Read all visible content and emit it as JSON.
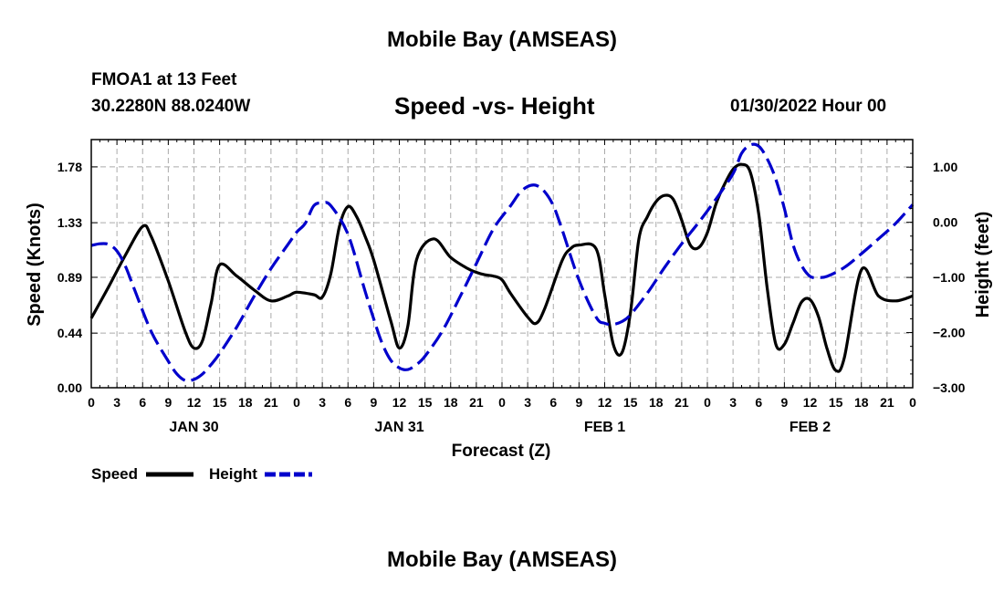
{
  "page": {
    "title": "Mobile Bay (AMSEAS)",
    "station": "FMOA1 at 13 Feet",
    "location": "30.2280N  88.0240W",
    "run_time": "01/30/2022 Hour 00",
    "footer_title": "Mobile Bay (AMSEAS)"
  },
  "colors": {
    "speed": "#000000",
    "height": "#0000cc",
    "grid": "#aaaaaa"
  },
  "chart_data": {
    "type": "line",
    "title": "Speed -vs- Height",
    "xlabel": "Forecast (Z)",
    "ylabel_left": "Speed (Knots)",
    "ylabel_right": "Height (feet)",
    "x_hour_range": [
      0,
      96
    ],
    "xtick_labels": [
      "0",
      "3",
      "6",
      "9",
      "12",
      "15",
      "18",
      "21",
      "0",
      "3",
      "6",
      "9",
      "12",
      "15",
      "18",
      "21",
      "0",
      "3",
      "6",
      "9",
      "12",
      "15",
      "18",
      "21",
      "0",
      "3",
      "6",
      "9",
      "12",
      "15",
      "18",
      "21",
      "0"
    ],
    "date_labels": [
      {
        "label": "JAN 30",
        "hour": 12
      },
      {
        "label": "JAN 31",
        "hour": 36
      },
      {
        "label": "FEB 1",
        "hour": 60
      },
      {
        "label": "FEB 2",
        "hour": 84
      }
    ],
    "ylim_left": [
      0,
      2.0
    ],
    "yticks_left": [
      "0.00",
      "0.44",
      "0.89",
      "1.33",
      "1.78"
    ],
    "ylim_right": [
      -3.0,
      1.5
    ],
    "yticks_right": [
      "−3.00",
      "−2.00",
      "−1.00",
      "0.00",
      "1.00"
    ],
    "grid": true,
    "legend": {
      "position": "bottom-left",
      "entries": [
        "Speed",
        "Height"
      ]
    },
    "series": [
      {
        "name": "Speed",
        "axis": "left",
        "dash": "solid",
        "hours": [
          0,
          2,
          4,
          6,
          7,
          9,
          11,
          12,
          13,
          14,
          15,
          17,
          19,
          21,
          23,
          24,
          26,
          27,
          28,
          29,
          30,
          31,
          32,
          33,
          35,
          36,
          37,
          38,
          40,
          42,
          44,
          45,
          46,
          47,
          48,
          49,
          51,
          52,
          53,
          55,
          56,
          57,
          59,
          60,
          61,
          62,
          63,
          64,
          65,
          66,
          67,
          68,
          69,
          70,
          71,
          72,
          73,
          74,
          75,
          76,
          77,
          78,
          79,
          80,
          81,
          82,
          83,
          84,
          85,
          86,
          87,
          88,
          90,
          92,
          94,
          96
        ],
        "values": [
          0.56,
          0.81,
          1.07,
          1.3,
          1.22,
          0.86,
          0.45,
          0.32,
          0.38,
          0.68,
          0.99,
          0.9,
          0.79,
          0.7,
          0.74,
          0.77,
          0.75,
          0.73,
          0.92,
          1.3,
          1.46,
          1.38,
          1.22,
          1.03,
          0.54,
          0.32,
          0.5,
          1.03,
          1.2,
          1.05,
          0.96,
          0.93,
          0.91,
          0.9,
          0.87,
          0.76,
          0.57,
          0.52,
          0.64,
          1.02,
          1.12,
          1.15,
          1.12,
          0.75,
          0.35,
          0.28,
          0.6,
          1.2,
          1.38,
          1.5,
          1.55,
          1.52,
          1.35,
          1.15,
          1.13,
          1.25,
          1.48,
          1.64,
          1.76,
          1.8,
          1.74,
          1.4,
          0.8,
          0.35,
          0.35,
          0.52,
          0.69,
          0.71,
          0.57,
          0.31,
          0.14,
          0.24,
          0.95,
          0.74,
          0.7,
          0.74
        ]
      },
      {
        "name": "Height",
        "axis": "right",
        "dash": "dashed",
        "hours": [
          0,
          1,
          2,
          3,
          4,
          5,
          7,
          9,
          10,
          11,
          12,
          13,
          14,
          15,
          17,
          19,
          21,
          23,
          24,
          25,
          26,
          27,
          28,
          30,
          32,
          33,
          34,
          35,
          36,
          37,
          38,
          39,
          41,
          43,
          45,
          47,
          49,
          50,
          51,
          52,
          53,
          54,
          55,
          57,
          59,
          60,
          61,
          62,
          63,
          65,
          67,
          69,
          71,
          73,
          75,
          76,
          77,
          78,
          79,
          80,
          81,
          82,
          83,
          84,
          85,
          86,
          88,
          90,
          92,
          94,
          96
        ],
        "values": [
          -0.42,
          -0.39,
          -0.4,
          -0.52,
          -0.8,
          -1.2,
          -1.98,
          -2.52,
          -2.75,
          -2.87,
          -2.85,
          -2.75,
          -2.58,
          -2.38,
          -1.9,
          -1.35,
          -0.84,
          -0.4,
          -0.18,
          -0.02,
          0.3,
          0.35,
          0.3,
          -0.22,
          -1.25,
          -1.75,
          -2.2,
          -2.5,
          -2.64,
          -2.67,
          -2.58,
          -2.43,
          -1.98,
          -1.38,
          -0.75,
          -0.12,
          0.3,
          0.52,
          0.65,
          0.67,
          0.55,
          0.3,
          -0.12,
          -1.05,
          -1.72,
          -1.83,
          -1.85,
          -1.8,
          -1.68,
          -1.28,
          -0.82,
          -0.39,
          0.0,
          0.42,
          0.88,
          1.25,
          1.4,
          1.38,
          1.15,
          0.78,
          0.25,
          -0.4,
          -0.78,
          -0.98,
          -1.0,
          -0.98,
          -0.82,
          -0.57,
          -0.3,
          -0.02,
          0.32
        ]
      }
    ]
  }
}
